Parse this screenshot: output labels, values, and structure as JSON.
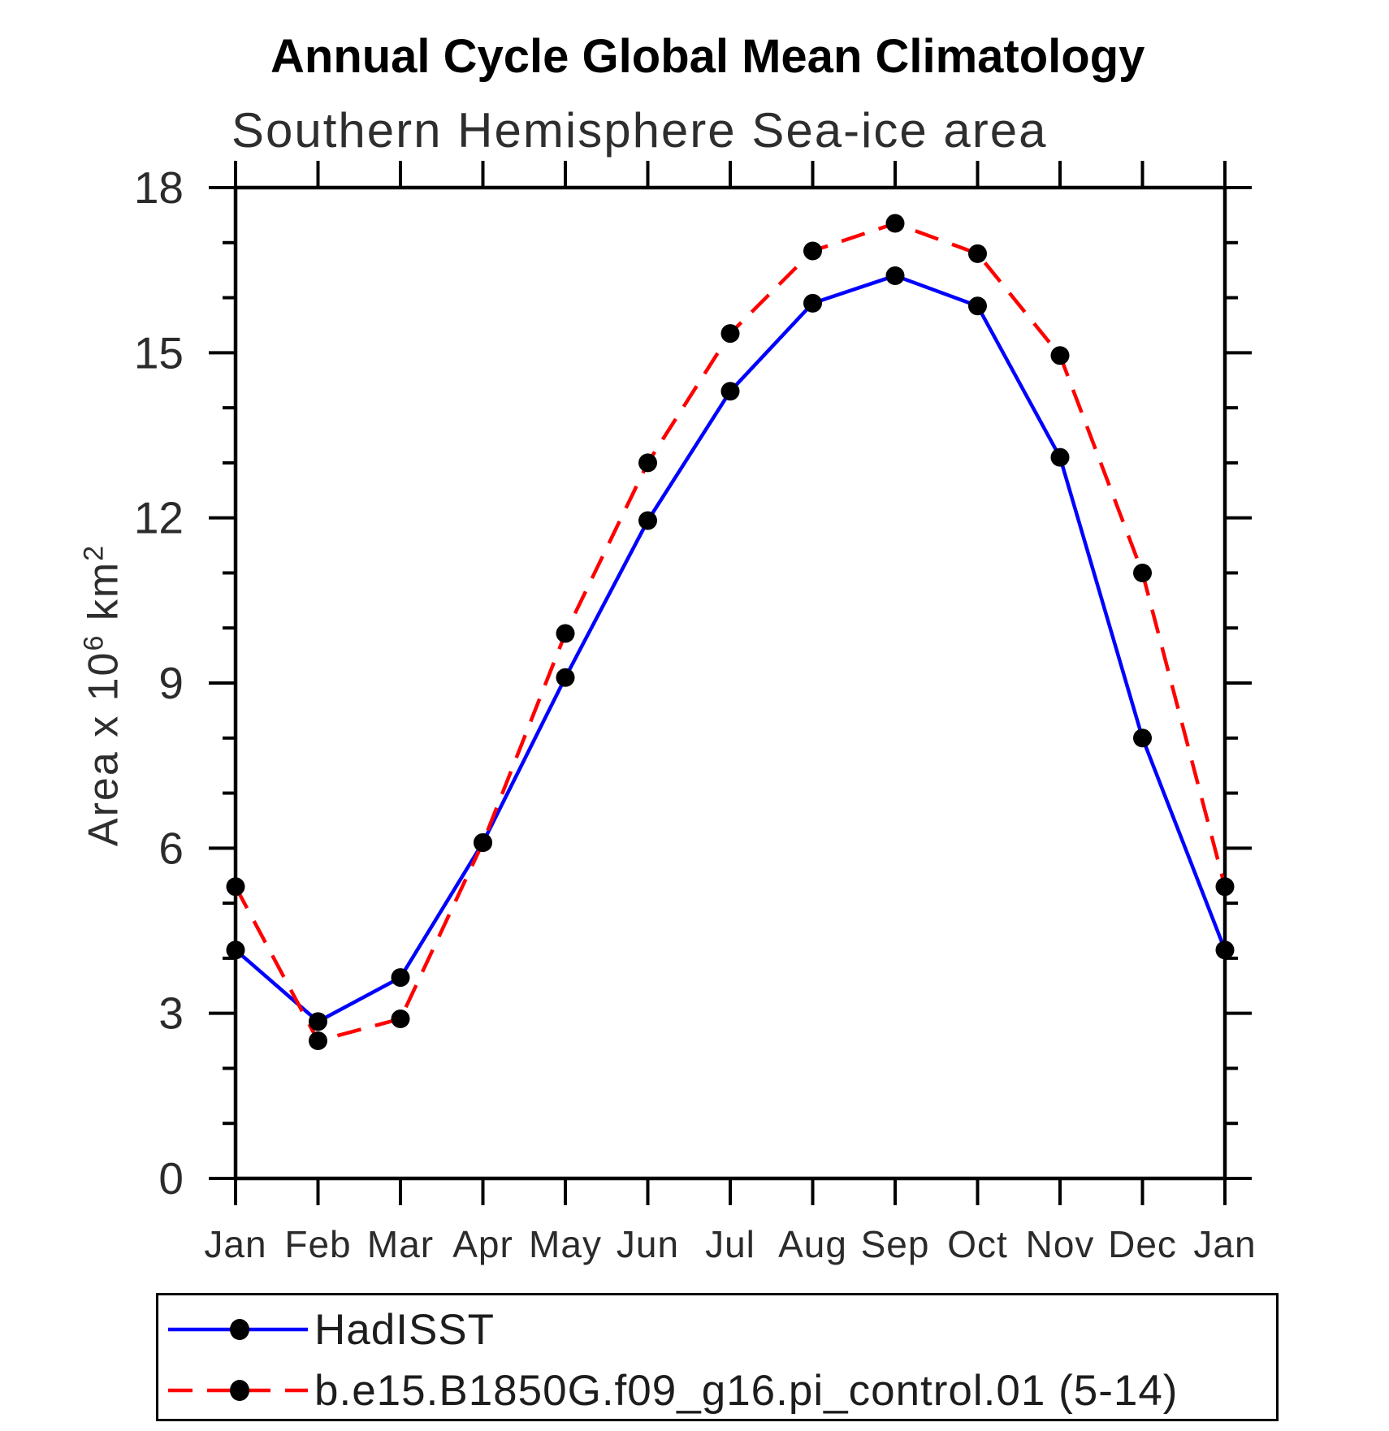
{
  "header": {
    "title": "Annual Cycle Global Mean Climatology",
    "subtitle": "Southern Hemisphere Sea-ice area"
  },
  "y_axis": {
    "label_prefix": "Area x 10",
    "label_sup1": "6",
    "label_mid": " km",
    "label_sup2": "2"
  },
  "legend": {
    "items": [
      {
        "label": "HadISST"
      },
      {
        "label": "b.e15.B1850G.f09_g16.pi_control.01 (5-14)"
      }
    ]
  },
  "colors": {
    "axis": "#000000",
    "tick_text": "#2b2b2b",
    "marker": "#000000",
    "hadisst_blue": "#0000ff",
    "model_red": "#ff0000"
  },
  "chart_data": {
    "type": "line",
    "title": "Annual Cycle Global Mean Climatology",
    "subtitle": "Southern Hemisphere Sea-ice area",
    "xlabel": "",
    "ylabel": "Area x 10^6 km^2",
    "categories": [
      "Jan",
      "Feb",
      "Mar",
      "Apr",
      "May",
      "Jun",
      "Jul",
      "Aug",
      "Sep",
      "Oct",
      "Nov",
      "Dec",
      "Jan"
    ],
    "series": [
      {
        "name": "HadISST",
        "color": "#0000ff",
        "line_style": "solid",
        "marker": "filled-circle",
        "values": [
          4.15,
          2.85,
          3.65,
          6.1,
          9.1,
          11.95,
          14.3,
          15.9,
          16.4,
          15.85,
          13.1,
          8.0,
          4.15
        ]
      },
      {
        "name": "b.e15.B1850G.f09_g16.pi_control.01 (5-14)",
        "color": "#ff0000",
        "line_style": "dashed",
        "marker": "filled-circle",
        "values": [
          5.3,
          2.5,
          2.9,
          6.1,
          9.9,
          13.0,
          15.35,
          16.85,
          17.35,
          16.8,
          14.95,
          11.0,
          5.3
        ]
      }
    ],
    "ylim": [
      0,
      18
    ],
    "yticks": [
      0,
      3,
      6,
      9,
      12,
      15,
      18
    ],
    "y_minor_step": 1,
    "grid": false,
    "tick_direction": "out",
    "legend_position": "bottom"
  }
}
